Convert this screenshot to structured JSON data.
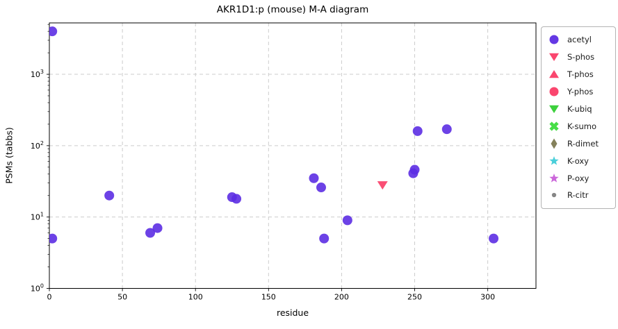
{
  "figure": {
    "title": "AKR1D1:p (mouse) M-A diagram",
    "xlabel": "residue",
    "ylabel": "PSMs (tabbs)"
  },
  "chart_data": {
    "type": "scatter",
    "title": "AKR1D1:p (mouse) M-A diagram",
    "xlabel": "residue",
    "ylabel": "PSMs (tabbs)",
    "yscale": "log",
    "xlim": [
      0,
      333
    ],
    "ylim": [
      1,
      5250
    ],
    "x_ticks": [
      0,
      50,
      100,
      150,
      200,
      250,
      300
    ],
    "y_tick_exponents": [
      0,
      1,
      2,
      3
    ],
    "grid": true,
    "grid_color": "#cccccc",
    "spine_color": "#000000",
    "legend_position": "outside-upper-right",
    "marker_alpha": 0.9,
    "series": [
      {
        "name": "acetyl",
        "marker": "circle",
        "color": "#5c2de3",
        "points": [
          [
            2,
            4000
          ],
          [
            2,
            5
          ],
          [
            41,
            20
          ],
          [
            69,
            6
          ],
          [
            74,
            7
          ],
          [
            125,
            19
          ],
          [
            128,
            18
          ],
          [
            181,
            35
          ],
          [
            186,
            26
          ],
          [
            188,
            5
          ],
          [
            204,
            9
          ],
          [
            249,
            41
          ],
          [
            250,
            46
          ],
          [
            252,
            160
          ],
          [
            272,
            170
          ],
          [
            304,
            5
          ]
        ]
      },
      {
        "name": "S-phos",
        "marker": "triangle-down",
        "color": "#fa3c66",
        "points": [
          [
            228,
            28
          ]
        ]
      },
      {
        "name": "T-phos",
        "marker": "triangle-up",
        "color": "#fa3c66",
        "points": []
      },
      {
        "name": "Y-phos",
        "marker": "circle",
        "color": "#fa3c66",
        "points": []
      },
      {
        "name": "K-ubiq",
        "marker": "triangle-down",
        "color": "#32cd32",
        "points": []
      },
      {
        "name": "K-sumo",
        "marker": "x-thick",
        "color": "#3ddc3d",
        "points": []
      },
      {
        "name": "R-dimet",
        "marker": "diamond",
        "color": "#7d7a52",
        "points": []
      },
      {
        "name": "K-oxy",
        "marker": "star",
        "color": "#40ccd8",
        "points": []
      },
      {
        "name": "P-oxy",
        "marker": "star",
        "color": "#c85fd8",
        "points": []
      },
      {
        "name": "R-citr",
        "marker": "dot",
        "color": "#7f7f7f",
        "points": []
      }
    ]
  }
}
